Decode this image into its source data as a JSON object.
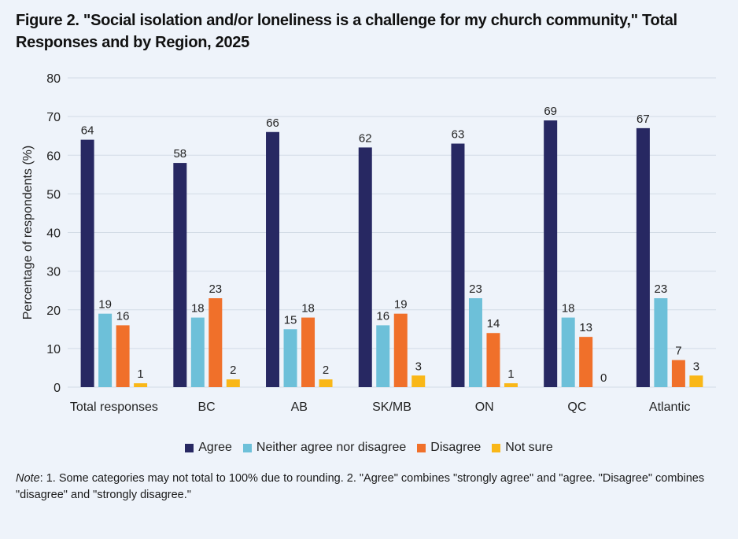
{
  "title": "Figure 2. \"Social isolation and/or loneliness is a challenge for my church community,\" Total Responses and by Region, 2025",
  "note": {
    "label": "Note",
    "text": ": 1. Some categories may not total to 100% due to rounding. 2. \"Agree\" combines \"strongly agree\" and \"agree. \"Disagree\" combines \"disagree\" and \"strongly disagree.\""
  },
  "chart_data": {
    "type": "bar",
    "ylabel": "Percentage of respondents (%)",
    "xlabel": "",
    "ylim": [
      0,
      80
    ],
    "yticks": [
      0,
      10,
      20,
      30,
      40,
      50,
      60,
      70,
      80
    ],
    "grid": true,
    "legend_position": "bottom",
    "categories": [
      "Total responses",
      "BC",
      "AB",
      "SK/MB",
      "ON",
      "QC",
      "Atlantic"
    ],
    "series": [
      {
        "name": "Agree",
        "color": "#272862",
        "values": [
          64,
          58,
          66,
          62,
          63,
          69,
          67
        ]
      },
      {
        "name": "Neither agree nor disagree",
        "color": "#6dc0d9",
        "values": [
          19,
          18,
          15,
          16,
          23,
          18,
          23
        ]
      },
      {
        "name": "Disagree",
        "color": "#f0702a",
        "values": [
          16,
          23,
          18,
          19,
          14,
          13,
          7
        ]
      },
      {
        "name": "Not sure",
        "color": "#f9b718",
        "values": [
          1,
          2,
          2,
          3,
          1,
          0,
          3
        ]
      }
    ]
  }
}
